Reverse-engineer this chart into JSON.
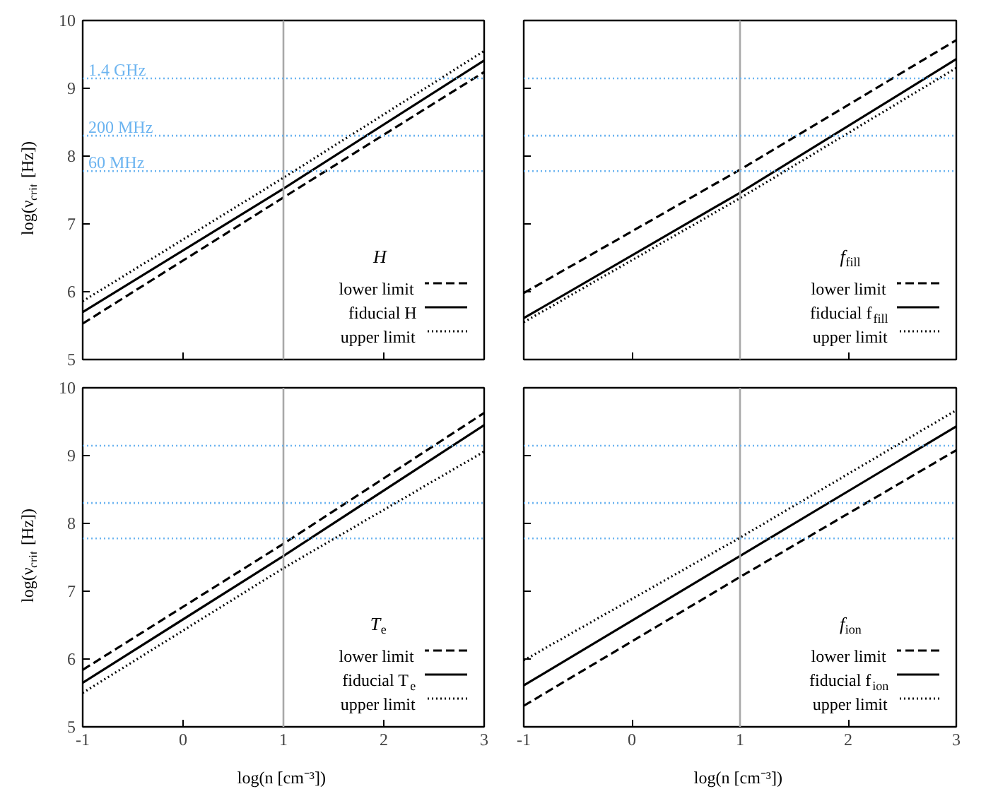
{
  "chart_data": [
    {
      "type": "line",
      "ylabel": "log(ν$_{crit}$ [Hz])",
      "legend_title": "H",
      "x": [
        -1,
        1,
        3
      ],
      "xlim": [
        -1,
        3
      ],
      "ylim": [
        5,
        10
      ],
      "xticks": [
        -1,
        0,
        1,
        2,
        3
      ],
      "yticks": [
        5,
        6,
        7,
        8,
        9,
        10
      ],
      "grid": false,
      "legend": "bottom right",
      "tick_labels": "y",
      "series": [
        {
          "name": "lower limit",
          "color": "#000000",
          "line_style": "dashed",
          "values": [
            5.53,
            7.39,
            9.24
          ]
        },
        {
          "name": "fiducial H",
          "color": "#000000",
          "line_style": "solid",
          "values": [
            5.7,
            7.52,
            9.41
          ]
        },
        {
          "name": "upper limit",
          "color": "#000000",
          "line_style": "dotted",
          "values": [
            5.86,
            7.68,
            9.55
          ]
        }
      ],
      "ref_lines": [
        {
          "axis": "x",
          "value": 1,
          "color": "#a8a8a8",
          "line_style": "solid"
        },
        {
          "axis": "y",
          "value": 9.146,
          "label": "1.4 GHz",
          "color": "#6cb4f0",
          "line_style": "dotted"
        },
        {
          "axis": "y",
          "value": 8.301,
          "label": "200 MHz",
          "color": "#6cb4f0",
          "line_style": "dotted"
        },
        {
          "axis": "y",
          "value": 7.778,
          "label": "60 MHz",
          "color": "#6cb4f0",
          "line_style": "dotted"
        }
      ]
    },
    {
      "type": "line",
      "legend_title": "f$_{fill}$",
      "x": [
        -1,
        1,
        3
      ],
      "xlim": [
        -1,
        3
      ],
      "ylim": [
        5,
        10
      ],
      "xticks": [
        -1,
        0,
        1,
        2,
        3
      ],
      "yticks": [
        5,
        6,
        7,
        8,
        9,
        10
      ],
      "grid": false,
      "legend": "bottom right",
      "tick_labels": false,
      "series": [
        {
          "name": "lower limit",
          "color": "#000000",
          "line_style": "dashed",
          "values": [
            5.98,
            7.8,
            9.71
          ]
        },
        {
          "name": "fiducial f$_{fill}$",
          "color": "#000000",
          "line_style": "solid",
          "values": [
            5.61,
            7.46,
            9.43
          ]
        },
        {
          "name": "upper limit",
          "color": "#000000",
          "line_style": "dotted",
          "values": [
            5.55,
            7.38,
            9.3
          ]
        }
      ],
      "ref_lines": [
        {
          "axis": "x",
          "value": 1,
          "color": "#a8a8a8",
          "line_style": "solid"
        },
        {
          "axis": "y",
          "value": 9.146,
          "color": "#6cb4f0",
          "line_style": "dotted"
        },
        {
          "axis": "y",
          "value": 8.301,
          "color": "#6cb4f0",
          "line_style": "dotted"
        },
        {
          "axis": "y",
          "value": 7.778,
          "color": "#6cb4f0",
          "line_style": "dotted"
        }
      ]
    },
    {
      "type": "line",
      "xlabel": "log(n [cm⁻³])",
      "ylabel": "log(ν$_{crit}$ [Hz])",
      "legend_title": "T$_{e}$",
      "x": [
        -1,
        1,
        3
      ],
      "xlim": [
        -1,
        3
      ],
      "ylim": [
        5,
        10
      ],
      "xticks": [
        -1,
        0,
        1,
        2,
        3
      ],
      "yticks": [
        5,
        6,
        7,
        8,
        9,
        10
      ],
      "grid": false,
      "legend": "bottom right",
      "series": [
        {
          "name": "lower limit",
          "color": "#000000",
          "line_style": "dashed",
          "values": [
            5.84,
            7.7,
            9.63
          ]
        },
        {
          "name": "fiducial T$_{e}$",
          "color": "#000000",
          "line_style": "solid",
          "values": [
            5.65,
            7.52,
            9.45
          ]
        },
        {
          "name": "upper limit",
          "color": "#000000",
          "line_style": "dotted",
          "values": [
            5.5,
            7.34,
            9.06
          ]
        }
      ],
      "ref_lines": [
        {
          "axis": "x",
          "value": 1,
          "color": "#a8a8a8",
          "line_style": "solid"
        },
        {
          "axis": "y",
          "value": 9.146,
          "color": "#6cb4f0",
          "line_style": "dotted"
        },
        {
          "axis": "y",
          "value": 8.301,
          "color": "#6cb4f0",
          "line_style": "dotted"
        },
        {
          "axis": "y",
          "value": 7.778,
          "color": "#6cb4f0",
          "line_style": "dotted"
        }
      ]
    },
    {
      "type": "line",
      "xlabel": "log(n [cm⁻³])",
      "legend_title": "f$_{ion}$",
      "x": [
        -1,
        1,
        3
      ],
      "xlim": [
        -1,
        3
      ],
      "ylim": [
        5,
        10
      ],
      "xticks": [
        -1,
        0,
        1,
        2,
        3
      ],
      "yticks": [
        5,
        6,
        7,
        8,
        9,
        10
      ],
      "grid": false,
      "legend": "bottom right",
      "tick_labels": "x",
      "series": [
        {
          "name": "lower limit",
          "color": "#000000",
          "line_style": "dashed",
          "values": [
            5.31,
            7.21,
            9.08
          ]
        },
        {
          "name": "fiducial f$_{ion}$",
          "color": "#000000",
          "line_style": "solid",
          "values": [
            5.61,
            7.52,
            9.43
          ]
        },
        {
          "name": "upper limit",
          "color": "#000000",
          "line_style": "dotted",
          "values": [
            5.98,
            7.79,
            9.67
          ]
        }
      ],
      "ref_lines": [
        {
          "axis": "x",
          "value": 1,
          "color": "#a8a8a8",
          "line_style": "solid"
        },
        {
          "axis": "y",
          "value": 9.146,
          "color": "#6cb4f0",
          "line_style": "dotted"
        },
        {
          "axis": "y",
          "value": 8.301,
          "color": "#6cb4f0",
          "line_style": "dotted"
        },
        {
          "axis": "y",
          "value": 7.778,
          "color": "#6cb4f0",
          "line_style": "dotted"
        }
      ]
    }
  ]
}
